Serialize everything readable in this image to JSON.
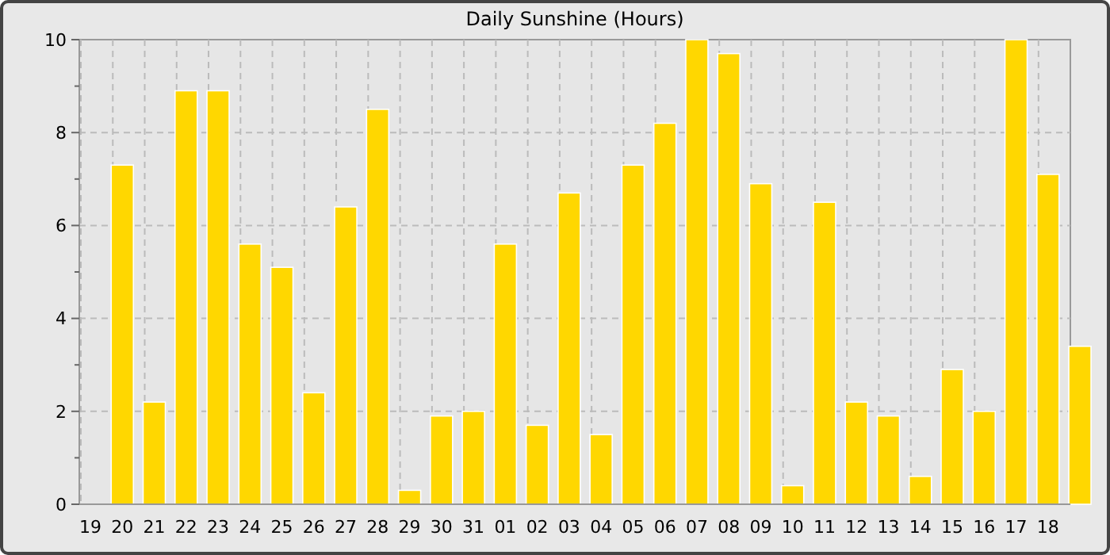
{
  "chart_data": {
    "type": "bar",
    "title": "Daily Sunshine (Hours)",
    "categories": [
      "19",
      "20",
      "21",
      "22",
      "23",
      "24",
      "25",
      "26",
      "27",
      "28",
      "29",
      "30",
      "31",
      "01",
      "02",
      "03",
      "04",
      "05",
      "06",
      "07",
      "08",
      "09",
      "10",
      "11",
      "12",
      "13",
      "14",
      "15",
      "16",
      "17",
      "18",
      null
    ],
    "values": [
      null,
      7.3,
      2.2,
      8.9,
      8.9,
      5.6,
      5.1,
      2.4,
      6.4,
      8.5,
      0.3,
      1.9,
      2.0,
      5.6,
      1.7,
      6.7,
      1.5,
      7.3,
      8.2,
      10,
      9.7,
      6.9,
      0.4,
      6.5,
      2.2,
      1.9,
      0.6,
      2.9,
      2.0,
      10,
      7.1,
      3.4
    ],
    "color": "#ffd700",
    "ylim": [
      0,
      10
    ],
    "yticks": [
      0,
      {
        "value": 1,
        "label": null
      },
      2,
      {
        "value": 3,
        "label": null
      },
      4,
      {
        "value": 5,
        "label": null
      },
      6,
      {
        "value": 7,
        "label": null
      },
      8,
      {
        "value": 9,
        "label": null
      },
      10
    ],
    "grid": true
  }
}
